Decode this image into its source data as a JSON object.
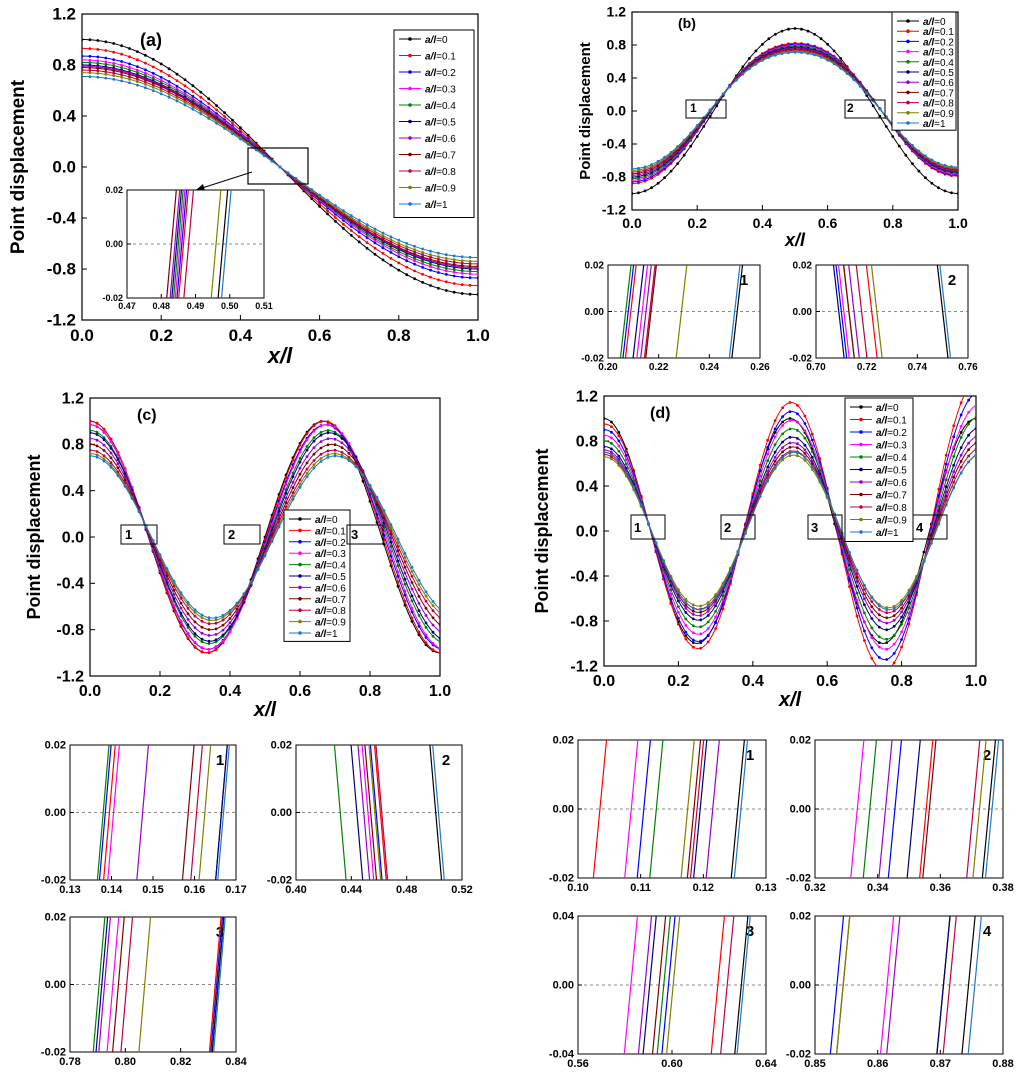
{
  "series_labels": [
    "a/l=0",
    "a/l=0.1",
    "a/l=0.2",
    "a/l=0.3",
    "a/l=0.4",
    "a/l=0.5",
    "a/l=0.6",
    "a/l=0.7",
    "a/l=0.8",
    "a/l=0.9",
    "a/l=1"
  ],
  "colors": [
    "#000000",
    "#ff0000",
    "#0000ff",
    "#ff00ff",
    "#008000",
    "#000080",
    "#9900cc",
    "#800000",
    "#c00040",
    "#808000",
    "#1e78c8"
  ],
  "chart_data": [
    {
      "id": "a",
      "type": "line",
      "panel_label": "(a)",
      "xlabel": "x/l",
      "ylabel": "Point displacement",
      "xlim": [
        0,
        1
      ],
      "ylim": [
        -1.2,
        1.2
      ],
      "xticks": [
        "0.0",
        "0.2",
        "0.4",
        "0.6",
        "0.8",
        "1.0"
      ],
      "yticks": [
        "-1.2",
        "-0.8",
        "-0.4",
        "0.0",
        "0.4",
        "0.8",
        "1.2"
      ],
      "legend": "top-right",
      "mode": 1,
      "series_amplitude": [
        1.0,
        0.93,
        0.87,
        0.84,
        0.82,
        0.8,
        0.79,
        0.78,
        0.76,
        0.74,
        0.71
      ],
      "inset": {
        "xlim": [
          0.47,
          0.51
        ],
        "ylim": [
          -0.02,
          0.02
        ],
        "xticks": [
          "0.47",
          "0.48",
          "0.49",
          "0.50",
          "0.51"
        ],
        "yticks": [
          "-0.02",
          "0.00",
          "0.02"
        ],
        "crossings": [
          0.498,
          0.4865,
          0.486,
          0.4855,
          0.485,
          0.4845,
          0.484,
          0.483,
          0.488,
          0.496,
          0.499
        ]
      }
    },
    {
      "id": "b",
      "type": "line",
      "panel_label": "(b)",
      "xlabel": "x/l",
      "ylabel": "Point displacement",
      "xlim": [
        0,
        1
      ],
      "ylim": [
        -1.2,
        1.2
      ],
      "xticks": [
        "0.0",
        "0.2",
        "0.4",
        "0.6",
        "0.8",
        "1.0"
      ],
      "yticks": [
        "-1.2",
        "-0.8",
        "-0.4",
        "0.0",
        "0.4",
        "0.8",
        "1.2"
      ],
      "legend": "top-right",
      "boxes": [
        "1",
        "2"
      ],
      "insets": [
        {
          "label": "1",
          "xlim": [
            0.2,
            0.26
          ],
          "ylim": [
            -0.02,
            0.02
          ],
          "xticks": [
            "0.20",
            "0.22",
            "0.24",
            "0.26"
          ],
          "yticks": [
            "-0.02",
            "0.00",
            "0.02"
          ],
          "crossings": [
            0.251,
            0.209,
            0.208,
            0.2135,
            0.207,
            0.212,
            0.215,
            0.217,
            0.2165,
            0.229,
            0.25
          ]
        },
        {
          "label": "2",
          "xlim": [
            0.7,
            0.76
          ],
          "ylim": [
            -0.02,
            0.02
          ],
          "xticks": [
            "0.70",
            "0.72",
            "0.74",
            "0.76"
          ],
          "yticks": [
            "-0.02",
            "0.00",
            "0.02"
          ],
          "crossings": [
            0.75,
            0.722,
            0.71,
            0.711,
            0.713,
            0.709,
            0.715,
            0.713,
            0.718,
            0.724,
            0.751
          ]
        }
      ]
    },
    {
      "id": "c",
      "type": "line",
      "panel_label": "(c)",
      "xlabel": "x/l",
      "ylabel": "Point displacement",
      "xlim": [
        0,
        1
      ],
      "ylim": [
        -1.2,
        1.2
      ],
      "xticks": [
        "0.0",
        "0.2",
        "0.4",
        "0.6",
        "0.8",
        "1.0"
      ],
      "yticks": [
        "-1.2",
        "-0.8",
        "-0.4",
        "0.0",
        "0.4",
        "0.8",
        "1.2"
      ],
      "legend": "center-right",
      "boxes": [
        "1",
        "2",
        "3"
      ],
      "insets": [
        {
          "label": "1",
          "xlim": [
            0.13,
            0.17
          ],
          "ylim": [
            -0.02,
            0.02
          ],
          "xticks": [
            "0.13",
            "0.14",
            "0.15",
            "0.16",
            "0.17"
          ],
          "yticks": [
            "-0.02",
            "0.00",
            "0.02"
          ],
          "crossings": [
            0.1665,
            0.1395,
            0.1385,
            0.1405,
            0.138,
            0.1665,
            0.1475,
            0.1585,
            0.1605,
            0.1625,
            0.167
          ]
        },
        {
          "label": "2",
          "xlim": [
            0.4,
            0.52
          ],
          "ylim": [
            -0.02,
            0.02
          ],
          "xticks": [
            "0.40",
            "0.44",
            "0.48",
            "0.52"
          ],
          "yticks": [
            "-0.02",
            "0.00",
            "0.02"
          ],
          "crossings": [
            0.501,
            0.461,
            0.458,
            0.452,
            0.432,
            0.444,
            0.449,
            0.454,
            0.462,
            0.457,
            0.503
          ]
        },
        {
          "label": "3",
          "xlim": [
            0.78,
            0.84
          ],
          "ylim": [
            -0.02,
            0.02
          ],
          "xticks": [
            "0.78",
            "0.80",
            "0.82",
            "0.84"
          ],
          "yticks": [
            "-0.02",
            "0.00",
            "0.02"
          ],
          "crossings": [
            0.8335,
            0.8325,
            0.833,
            0.7955,
            0.7905,
            0.7915,
            0.7925,
            0.7975,
            0.8005,
            0.807,
            0.834
          ]
        }
      ]
    },
    {
      "id": "d",
      "type": "line",
      "panel_label": "(d)",
      "xlabel": "x/l",
      "ylabel": "Point displacement",
      "xlim": [
        0,
        1
      ],
      "ylim": [
        -1.2,
        1.2
      ],
      "xticks": [
        "0.0",
        "0.2",
        "0.4",
        "0.6",
        "0.8",
        "1.0"
      ],
      "yticks": [
        "-1.2",
        "-0.8",
        "-0.4",
        "0.0",
        "0.4",
        "0.8",
        "1.2"
      ],
      "legend": "top-right",
      "boxes": [
        "1",
        "2",
        "3",
        "4"
      ],
      "insets": [
        {
          "label": "1",
          "xlim": [
            0.1,
            0.13
          ],
          "ylim": [
            -0.02,
            0.02
          ],
          "xticks": [
            "0.10",
            "0.11",
            "0.12",
            "0.13"
          ],
          "yticks": [
            "-0.02",
            "0.00",
            "0.02"
          ],
          "crossings": [
            0.1255,
            0.1035,
            0.1105,
            0.1085,
            0.1125,
            0.1195,
            0.1215,
            0.1185,
            0.119,
            0.1175,
            0.126
          ]
        },
        {
          "label": "2",
          "xlim": [
            0.32,
            0.38
          ],
          "ylim": [
            -0.02,
            0.02
          ],
          "xticks": [
            "0.32",
            "0.34",
            "0.36",
            "0.38"
          ],
          "yticks": [
            "-0.02",
            "0.00",
            "0.02"
          ],
          "crossings": [
            0.3755,
            0.3555,
            0.3455,
            0.3335,
            0.3375,
            0.3515,
            0.3425,
            0.3565,
            0.3705,
            0.3725,
            0.3765
          ]
        },
        {
          "label": "3",
          "xlim": [
            0.56,
            0.64
          ],
          "ylim": [
            -0.04,
            0.04
          ],
          "xticks": [
            "0.56",
            "0.60",
            "0.64"
          ],
          "yticks": [
            "-0.04",
            "0.00",
            "0.04"
          ],
          "crossings": [
            0.6295,
            0.6195,
            0.5985,
            0.5825,
            0.5965,
            0.5905,
            0.5885,
            0.5945,
            0.6235,
            0.6005,
            0.6305
          ]
        },
        {
          "label": "4",
          "xlim": [
            0.85,
            0.88
          ],
          "ylim": [
            -0.02,
            0.02
          ],
          "xticks": [
            "0.85",
            "0.86",
            "0.87",
            "0.88"
          ],
          "yticks": [
            "-0.02",
            "0.00",
            "0.02"
          ],
          "crossings": [
            0.8745,
            0.8705,
            0.8535,
            0.8615,
            0.8705,
            0.8705,
            0.8625,
            0.8545,
            0.8715,
            0.8545,
            0.8755
          ]
        }
      ]
    }
  ]
}
